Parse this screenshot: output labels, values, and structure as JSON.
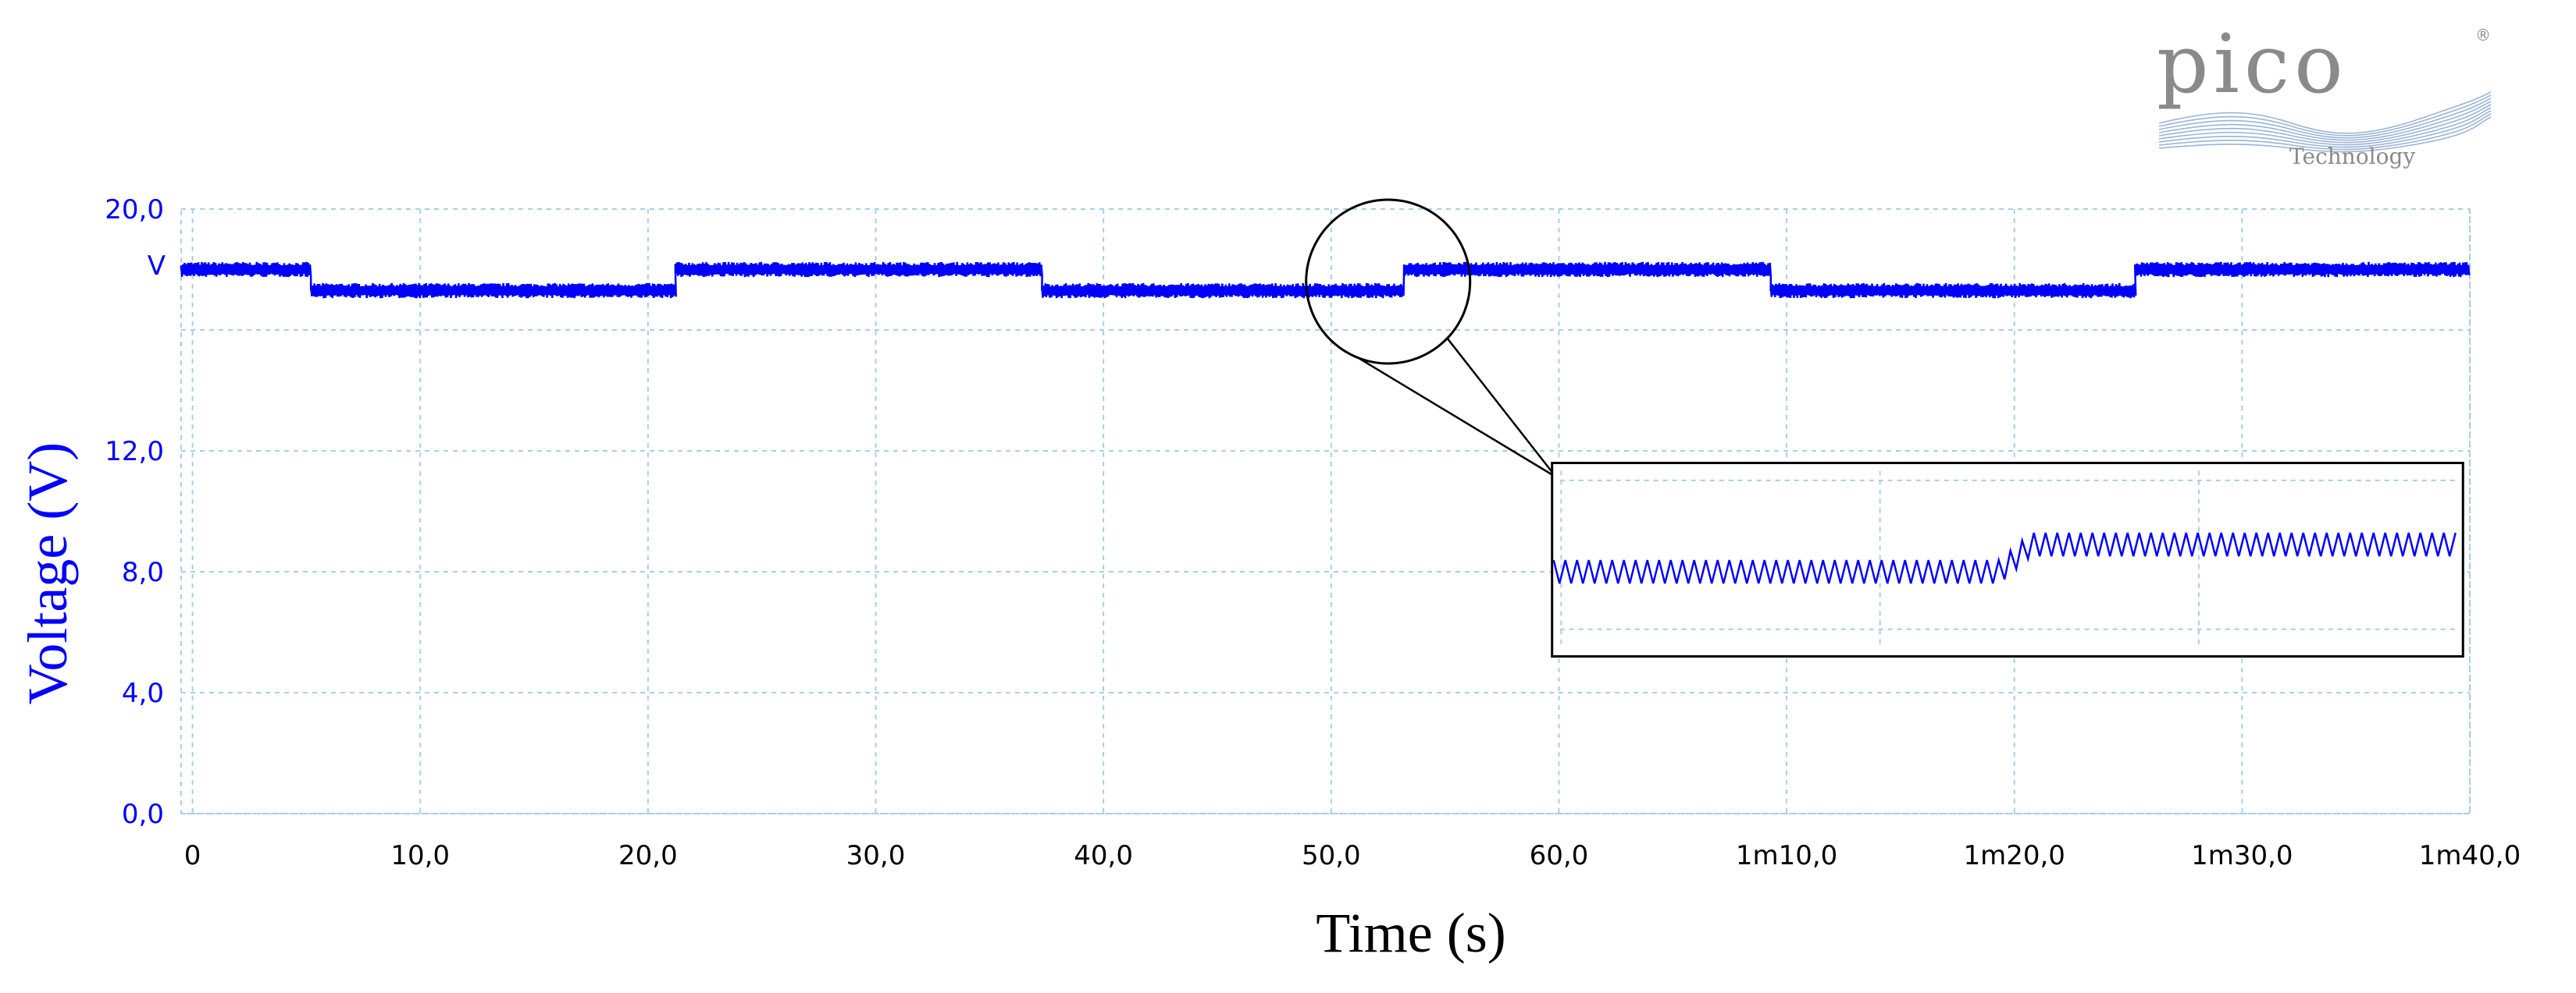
{
  "logo": {
    "word": "pico",
    "mark": "®",
    "subtitle": "Technology",
    "word_color": "#8a8a8a",
    "wave_color": "#9ab4d4"
  },
  "chart_data": {
    "type": "line",
    "xlabel": "Time (s)",
    "ylabel": "Voltage (V)",
    "y_unit_label": "V",
    "xlim": [
      -0.5,
      100
    ],
    "ylim": [
      0,
      20
    ],
    "x_ticks": [
      0,
      10,
      20,
      30,
      40,
      50,
      60,
      70,
      80,
      90,
      100
    ],
    "x_tick_labels": [
      "0",
      "10,0",
      "20,0",
      "30,0",
      "40,0",
      "50,0",
      "60,0",
      "1m10,0",
      "1m20,0",
      "1m30,0",
      "1m40,0"
    ],
    "y_ticks": [
      0,
      4,
      8,
      12,
      20
    ],
    "y_tick_labels": [
      "0,0",
      "4,0",
      "8,0",
      "12,0",
      "20,0"
    ],
    "y_gridlines": [
      0,
      4,
      8,
      12,
      16,
      20
    ],
    "grid": true,
    "series_color": "#0000ff",
    "axis_text_color": "#0000ff",
    "grid_color": "#a7cfe6",
    "series": [
      {
        "segments": [
          {
            "x_start": -0.5,
            "x_end": 5.2,
            "level": 18.0
          },
          {
            "x_start": 5.2,
            "x_end": 21.2,
            "level": 17.3
          },
          {
            "x_start": 21.2,
            "x_end": 37.3,
            "level": 18.0
          },
          {
            "x_start": 37.3,
            "x_end": 53.2,
            "level": 17.3
          },
          {
            "x_start": 53.2,
            "x_end": 69.3,
            "level": 18.0
          },
          {
            "x_start": 69.3,
            "x_end": 85.3,
            "level": 17.3
          },
          {
            "x_start": 85.3,
            "x_end": 100,
            "level": 18.0
          }
        ],
        "noise_band": 0.5
      }
    ],
    "zoom_annotation": {
      "circle_center": {
        "x": 52.5,
        "y": 17.6
      },
      "inset": {
        "x_range": [
          59.7,
          99.7
        ],
        "y_range": [
          5.2,
          11.6
        ],
        "low_level": 8.0,
        "high_level": 8.9,
        "step_fraction": 0.5
      }
    }
  }
}
